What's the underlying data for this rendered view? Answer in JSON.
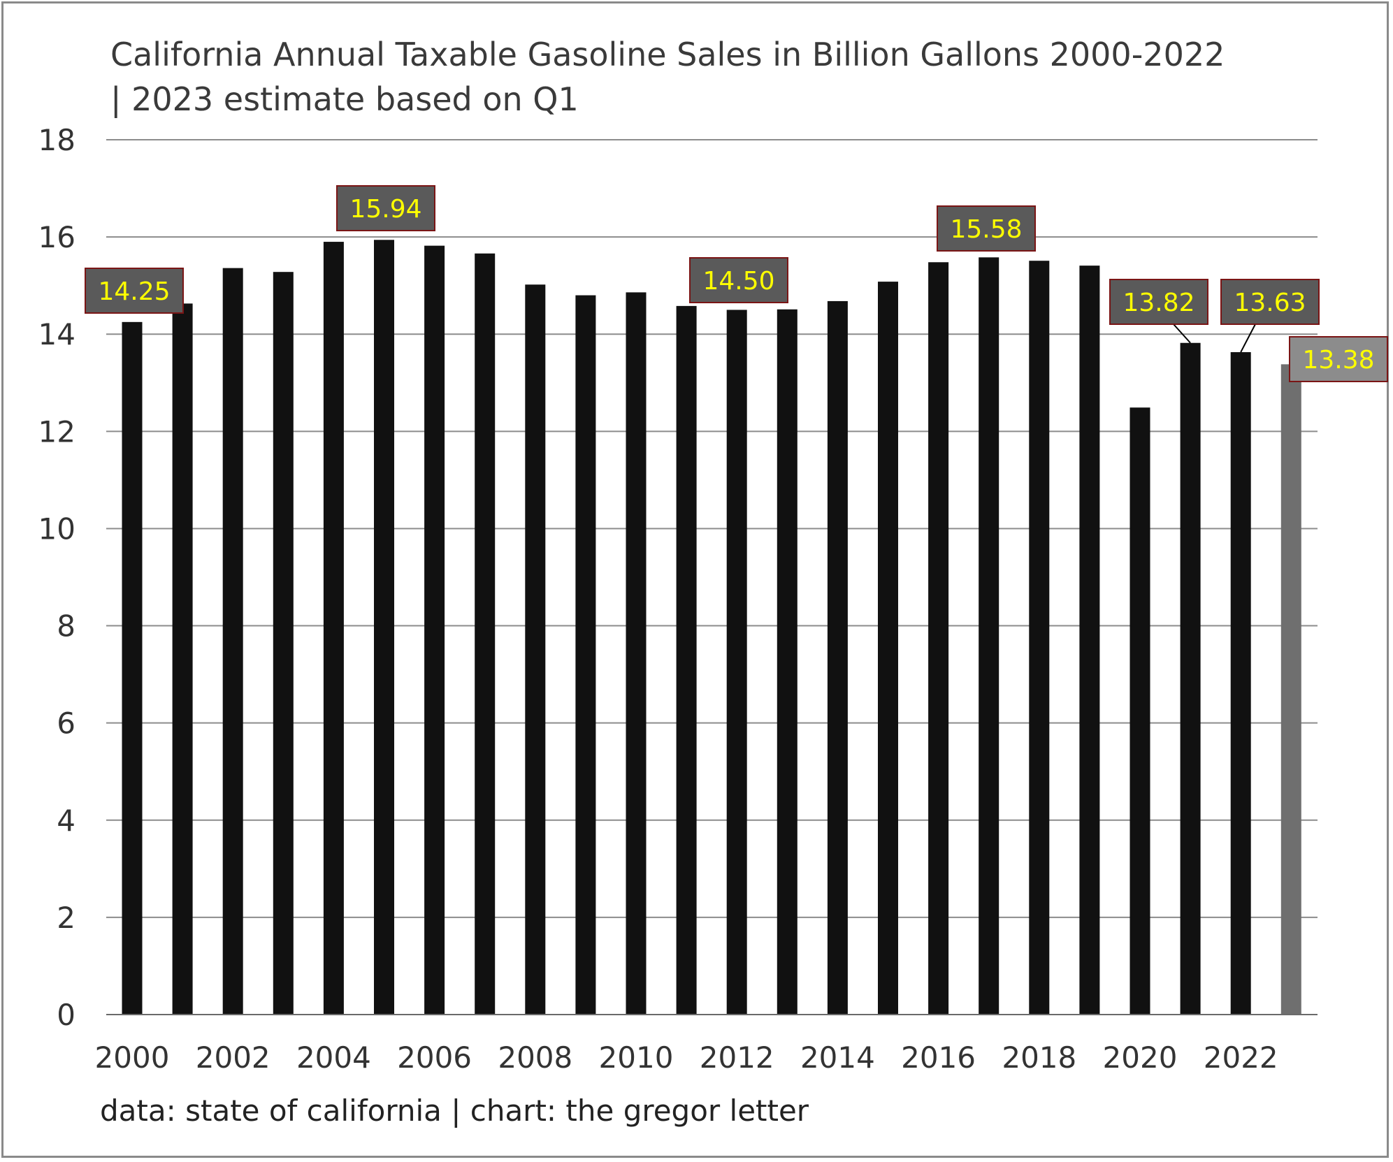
{
  "chart_data": {
    "type": "bar",
    "title": "California Annual Taxable Gasoline Sales in Billion Gallons 2000-2022 | 2023 estimate based on Q1",
    "source": "data: state of california | chart: the gregor letter",
    "xlabel": "",
    "ylabel": "",
    "ylim": [
      0,
      18
    ],
    "yticks": [
      "0",
      "2",
      "4",
      "6",
      "8",
      "10",
      "12",
      "14",
      "16",
      "18"
    ],
    "xtick_labels": [
      "2000",
      "2002",
      "2004",
      "2006",
      "2008",
      "2010",
      "2012",
      "2014",
      "2016",
      "2018",
      "2020",
      "2022"
    ],
    "categories": [
      "2000",
      "2001",
      "2002",
      "2003",
      "2004",
      "2005",
      "2006",
      "2007",
      "2008",
      "2009",
      "2010",
      "2011",
      "2012",
      "2013",
      "2014",
      "2015",
      "2016",
      "2017",
      "2018",
      "2019",
      "2020",
      "2021",
      "2022",
      "2023"
    ],
    "values": [
      14.25,
      14.63,
      15.36,
      15.28,
      15.9,
      15.94,
      15.82,
      15.66,
      15.02,
      14.8,
      14.86,
      14.58,
      14.5,
      14.51,
      14.68,
      15.08,
      15.48,
      15.58,
      15.51,
      15.41,
      12.49,
      13.82,
      13.63,
      13.38
    ],
    "bar_colors": {
      "actual": "#111111",
      "estimate": "#6f6f6f"
    },
    "estimate_category": "2023",
    "grid": true,
    "legend": "none",
    "annotations": [
      {
        "category": "2000",
        "text": "14.25"
      },
      {
        "category": "2005",
        "text": "15.94"
      },
      {
        "category": "2012",
        "text": "14.50"
      },
      {
        "category": "2017",
        "text": "15.58"
      },
      {
        "category": "2021",
        "text": "13.82"
      },
      {
        "category": "2022",
        "text": "13.63"
      },
      {
        "category": "2023",
        "text": "13.38"
      }
    ],
    "annotation_style": {
      "box_fill": "#5a5a5a",
      "estimate_box_fill": "#8c8c8c",
      "border": "#7a1515",
      "text_color": "#ffff00"
    }
  }
}
